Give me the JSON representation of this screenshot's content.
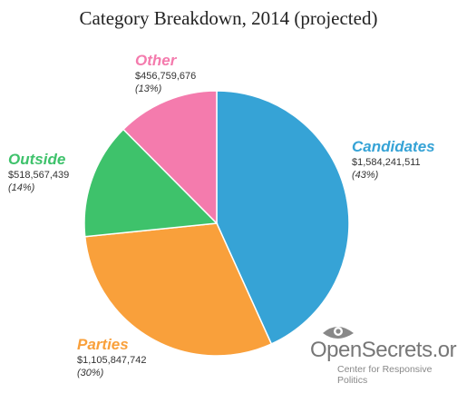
{
  "chart_data": {
    "type": "pie",
    "title": "Category Breakdown, 2014 (projected)",
    "slices": [
      {
        "name": "Candidates",
        "value": 1584241511,
        "value_label": "$1,584,241,511",
        "percent_label": "(43%)",
        "color": "#36a3d6"
      },
      {
        "name": "Parties",
        "value": 1105847742,
        "value_label": "$1,105,847,742",
        "percent_label": "(30%)",
        "color": "#f9a03b"
      },
      {
        "name": "Outside",
        "value": 518567439,
        "value_label": "$518,567,439",
        "percent_label": "(14%)",
        "color": "#3ec26b"
      },
      {
        "name": "Other",
        "value": 456759676,
        "value_label": "$456,759,676",
        "percent_label": "(13%)",
        "color": "#f47bad"
      }
    ],
    "start": "12 o'clock",
    "direction": "clockwise"
  },
  "logo": {
    "name": "OpenSecrets.org",
    "tagline": "Center for Responsive Politics",
    "eye_icon": "eye-icon",
    "color": "#777777"
  }
}
